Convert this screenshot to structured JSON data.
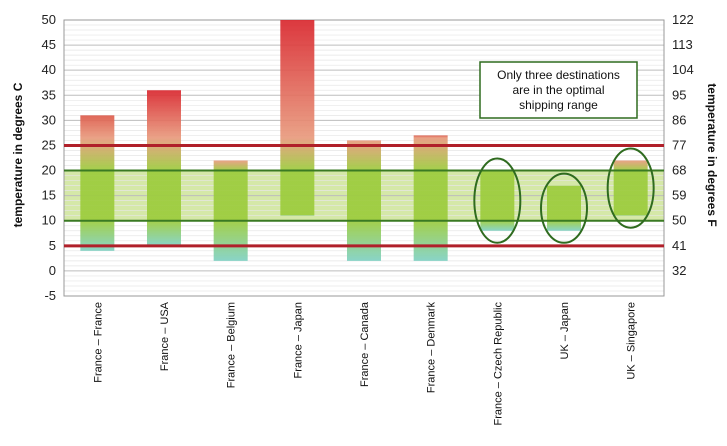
{
  "chart_data": {
    "type": "range_bar",
    "ylabel_left": "temperature in degrees C",
    "ylabel_right": "temperature in degrees F",
    "ylim": [
      -5,
      50
    ],
    "yticks_left": [
      "-5",
      "0",
      "5",
      "10",
      "15",
      "20",
      "25",
      "30",
      "35",
      "40",
      "45",
      "50"
    ],
    "yticks_right": [
      "32",
      "41",
      "50",
      "59",
      "68",
      "77",
      "86",
      "95",
      "104",
      "113",
      "122"
    ],
    "grid": true,
    "optimal_band": {
      "low": 10,
      "high": 20,
      "color": "#d5e8a8",
      "line_color": "#3a7a23"
    },
    "limit_lines": {
      "values": [
        5,
        25
      ],
      "color": "#b0202a"
    },
    "categories": [
      "France – France",
      "France – USA",
      "France – Belgium",
      "France – Japan",
      "France – Canada",
      "France – Denmark",
      "France – Czech Republic",
      "UK – Japan",
      "UK – Singapore"
    ],
    "ranges": [
      {
        "low": 4,
        "high": 31
      },
      {
        "low": 5,
        "high": 36
      },
      {
        "low": 2,
        "high": 22
      },
      {
        "low": 11,
        "high": 50
      },
      {
        "low": 2,
        "high": 26
      },
      {
        "low": 2,
        "high": 27
      },
      {
        "low": 8,
        "high": 20
      },
      {
        "low": 8,
        "high": 17
      },
      {
        "low": 11,
        "high": 22
      }
    ],
    "highlighted": [
      6,
      7,
      8
    ],
    "annotation": "Only three destinations are in the optimal shipping range",
    "annotation_lines": [
      "Only three destinations",
      "are in the optimal",
      "shipping range"
    ],
    "colors": {
      "hot": "#d9272e",
      "warm": "#e89a7d",
      "optimal": "#9ccc3c",
      "cool": "#7fd1c3",
      "grid": "#c8c8c8",
      "border": "#999999",
      "ellipse": "#2f6b1f"
    }
  }
}
